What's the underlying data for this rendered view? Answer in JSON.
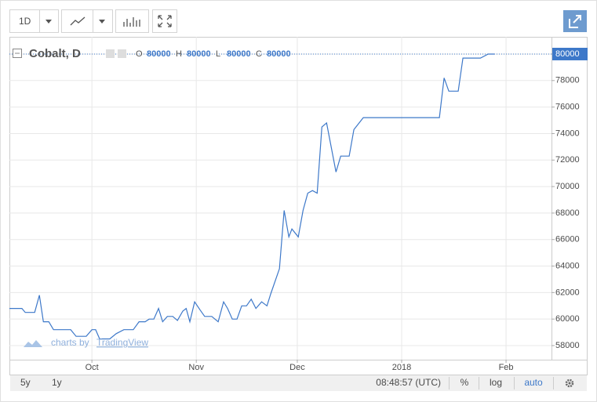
{
  "toolbar": {
    "interval": "1D"
  },
  "legend": {
    "symbol": "Cobalt, D",
    "fields": [
      {
        "label": "O",
        "value": 80000
      },
      {
        "label": "H",
        "value": 80000
      },
      {
        "label": "L",
        "value": 80000
      },
      {
        "label": "C",
        "value": 80000
      }
    ]
  },
  "watermark": {
    "prefix": "charts by",
    "brand": "TradingView"
  },
  "chart_data": {
    "type": "line",
    "color": "#3d78c9",
    "grid": true,
    "last_price": 80000,
    "x": [
      249.5,
      253.2,
      254.2,
      257.0,
      258.4,
      259.6,
      261.2,
      262.6,
      267.7,
      269.3,
      272.3,
      274.0,
      275.1,
      276.3,
      279.3,
      281.2,
      283.5,
      286.3,
      288.0,
      289.8,
      291.0,
      292.4,
      293.8,
      295.0,
      296.4,
      298.0,
      299.4,
      301.0,
      302.0,
      303.1,
      304.5,
      306.1,
      307.5,
      309.6,
      311.5,
      313.1,
      314.3,
      315.7,
      317.1,
      318.5,
      319.9,
      321.3,
      322.7,
      324.4,
      326.0,
      327.1,
      329.7,
      331.1,
      332.5,
      333.4,
      335.3,
      336.7,
      338.1,
      339.5,
      340.9,
      342.3,
      343.7,
      346.5,
      347.9,
      350.4,
      351.8,
      354.6,
      377.2,
      378.6,
      380.0,
      382.8,
      384.2,
      389.4,
      391.7,
      393.6
    ],
    "values": [
      60800,
      60800,
      60500,
      60500,
      61800,
      59800,
      59800,
      59200,
      59200,
      58700,
      58700,
      59200,
      59200,
      58500,
      58500,
      58900,
      59200,
      59200,
      59800,
      59800,
      60000,
      60000,
      60800,
      59800,
      60200,
      60200,
      59900,
      60600,
      60800,
      59800,
      61300,
      60700,
      60200,
      60200,
      59800,
      61300,
      60800,
      60000,
      60000,
      61000,
      61000,
      61500,
      60800,
      61300,
      61000,
      61900,
      63800,
      68200,
      66200,
      66800,
      66200,
      68200,
      69500,
      69700,
      69500,
      74500,
      74800,
      71100,
      72300,
      72300,
      74300,
      75200,
      75200,
      78200,
      77200,
      77200,
      79700,
      79700,
      80000,
      80000
    ],
    "xlim": [
      249.5,
      410.5
    ],
    "xticks": [
      {
        "value": 274,
        "label": "Oct"
      },
      {
        "value": 305,
        "label": "Nov"
      },
      {
        "value": 335,
        "label": "Dec"
      },
      {
        "value": 366,
        "label": "2018"
      },
      {
        "value": 397,
        "label": "Feb"
      }
    ],
    "ylim": [
      56935,
      81300
    ],
    "yticks": [
      58000,
      60000,
      62000,
      64000,
      66000,
      68000,
      70000,
      72000,
      74000,
      76000,
      78000,
      80000
    ]
  },
  "bottom_bar": {
    "ranges": [
      "5y",
      "1y"
    ],
    "clock": "08:48:57 (UTC)",
    "toggles": [
      "%",
      "log",
      "auto"
    ]
  }
}
